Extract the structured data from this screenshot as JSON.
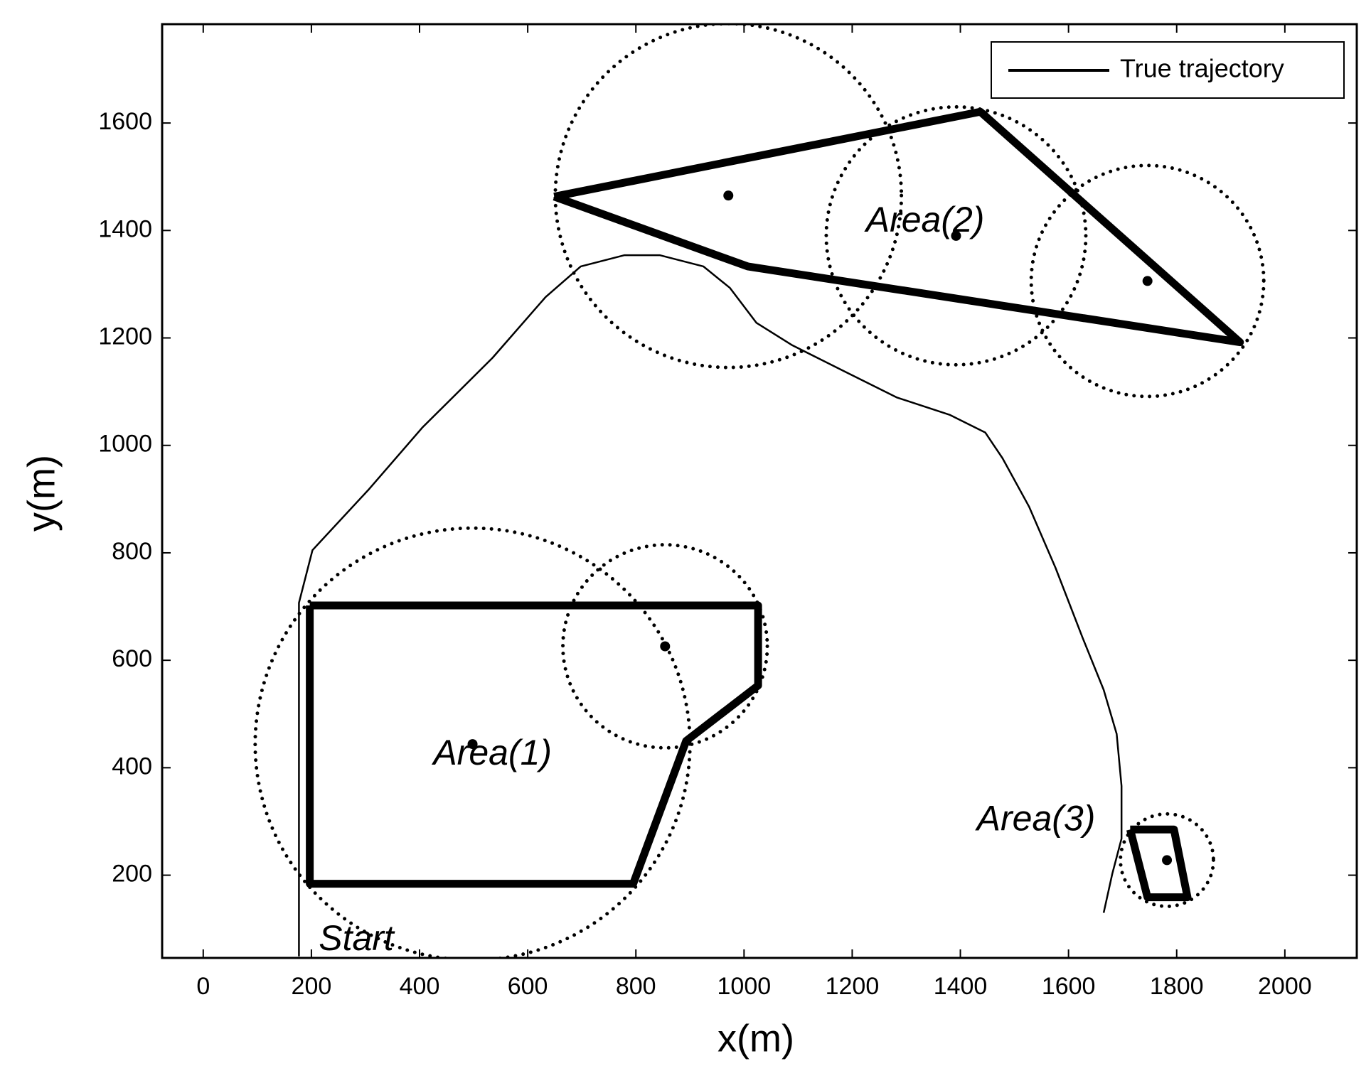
{
  "chart_data": {
    "type": "line",
    "xlabel": "x(m)",
    "ylabel": "y(m)",
    "xlim": [
      -76,
      2133
    ],
    "ylim": [
      46,
      1784
    ],
    "xticks": [
      0,
      200,
      400,
      600,
      800,
      1000,
      1200,
      1400,
      1600,
      1800,
      2000
    ],
    "yticks": [
      200,
      400,
      600,
      800,
      1000,
      1200,
      1400,
      1600
    ],
    "legend": "upper right",
    "series": [
      {
        "name": "True trajectory",
        "color": "#000000",
        "x": [
          177,
          177,
          202,
          307,
          405,
          535,
          633,
          698,
          779,
          844,
          925,
          974,
          1023,
          1088,
          1185,
          1283,
          1380,
          1446,
          1478,
          1527,
          1576,
          1626,
          1665,
          1689,
          1698,
          1698,
          1681,
          1665
        ],
        "y": [
          49,
          707,
          805,
          919,
          1033,
          1163,
          1276,
          1333,
          1354,
          1354,
          1333,
          1293,
          1228,
          1187,
          1138,
          1089,
          1057,
          1024,
          976,
          886,
          772,
          642,
          545,
          463,
          366,
          268,
          203,
          130
        ]
      }
    ],
    "polygons": [
      {
        "x": [
          197,
          1026,
          1026,
          893,
          795,
          197,
          197
        ],
        "y": [
          702,
          702,
          553,
          450,
          184,
          184,
          702
        ]
      },
      {
        "x": [
          649,
          1437,
          1917,
          1007,
          649
        ],
        "y": [
          1463,
          1621,
          1192,
          1333,
          1463
        ]
      },
      {
        "x": [
          1714,
          1795,
          1820,
          1746,
          1714
        ],
        "y": [
          285,
          285,
          159,
          159,
          285
        ]
      }
    ],
    "circles": [
      {
        "cx": 971,
        "cy": 1465,
        "r": 320
      },
      {
        "cx": 1392,
        "cy": 1390,
        "r": 240
      },
      {
        "cx": 1746,
        "cy": 1306,
        "r": 215
      },
      {
        "cx": 498,
        "cy": 444,
        "r": 402
      },
      {
        "cx": 854,
        "cy": 626,
        "r": 189
      },
      {
        "cx": 1782,
        "cy": 228,
        "r": 86
      }
    ],
    "annotations": [
      {
        "text": "Area(1)",
        "x": 535,
        "y": 423
      },
      {
        "text": "Area(2)",
        "x": 1335,
        "y": 1415
      },
      {
        "text": "Area(3)",
        "x": 1540,
        "y": 301
      },
      {
        "text": "Start",
        "x": 283,
        "y": 78
      }
    ]
  }
}
